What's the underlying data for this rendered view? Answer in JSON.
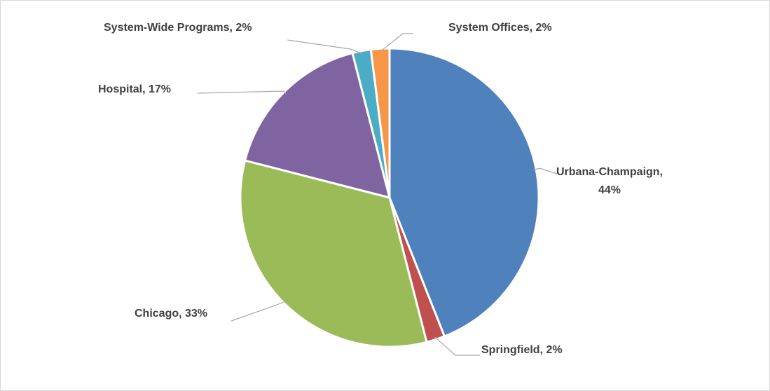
{
  "chart_data": {
    "type": "pie",
    "categories": [
      "Urbana-Champaign",
      "Springfield",
      "Chicago",
      "Hospital",
      "System-Wide Programs",
      "System Offices"
    ],
    "values": [
      44,
      2,
      33,
      17,
      2,
      2
    ],
    "value_labels": [
      "Urbana-Champaign, 44%",
      "Springfield, 2%",
      "Chicago, 33%",
      "Hospital, 17%",
      "System-Wide Programs, 2%",
      "System Offices, 2%"
    ],
    "colors": [
      "#4f81bd",
      "#c0504d",
      "#9bbb59",
      "#8064a2",
      "#4bacc6",
      "#f79646"
    ]
  }
}
